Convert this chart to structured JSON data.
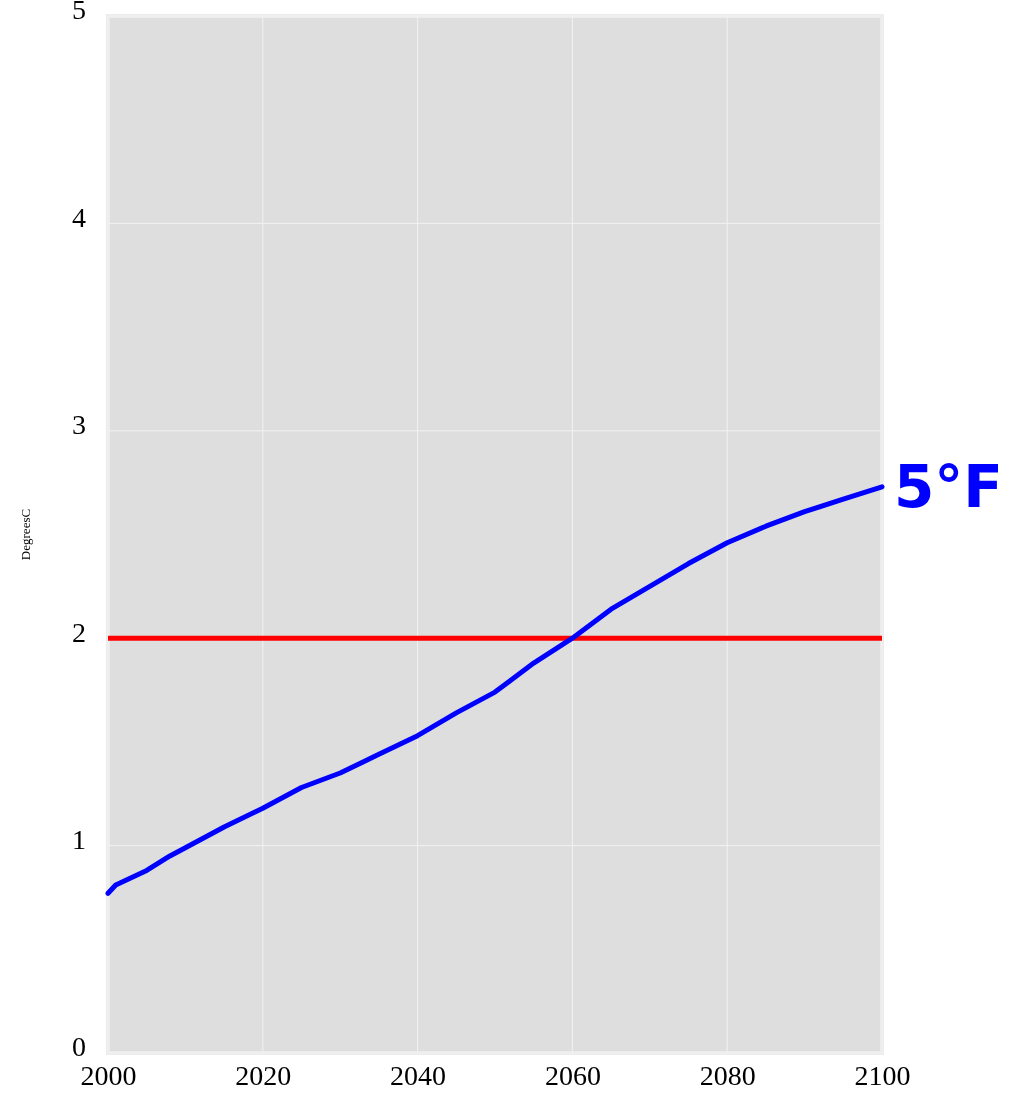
{
  "chart_data": {
    "type": "line",
    "ylabel": "DegreesC",
    "x": [
      2000,
      2001,
      2005,
      2008,
      2010,
      2015,
      2020,
      2025,
      2030,
      2035,
      2040,
      2045,
      2050,
      2055,
      2060,
      2065,
      2070,
      2075,
      2080,
      2085,
      2090,
      2095,
      2100
    ],
    "series": [
      {
        "color": "#0000ff",
        "values": [
          0.77,
          0.81,
          0.88,
          0.95,
          0.99,
          1.09,
          1.18,
          1.28,
          1.35,
          1.44,
          1.53,
          1.64,
          1.74,
          1.88,
          2.0,
          2.14,
          2.25,
          2.36,
          2.46,
          2.54,
          2.61,
          2.67,
          2.73
        ]
      }
    ],
    "xlim": [
      2000,
      2100
    ],
    "xticks": [
      2000,
      2020,
      2040,
      2060,
      2080,
      2100
    ],
    "ylim": [
      0,
      5
    ],
    "yticks": [
      0,
      1,
      2,
      3,
      4,
      5
    ],
    "grid": true,
    "line_style": "solid",
    "marker": "none",
    "ref_lines": [
      {
        "axis": "y",
        "value": 2,
        "color": "#ff0000"
      }
    ],
    "annotations": [
      {
        "text": "5°F",
        "x": 2100,
        "y": 2.73
      }
    ]
  }
}
